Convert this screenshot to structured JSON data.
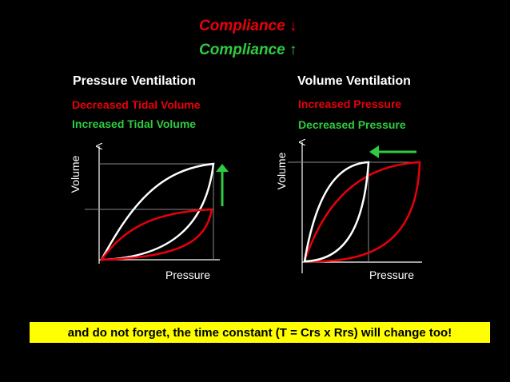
{
  "colors": {
    "red": "#e8000b",
    "green": "#2ecc40",
    "white": "#ffffff",
    "yellow": "#ffff00"
  },
  "header": {
    "line1": "Compliance",
    "line1_arrow": "↓",
    "line2": "Compliance",
    "line2_arrow": "↑"
  },
  "left": {
    "heading": "Pressure Ventilation",
    "red_note": "Decreased Tidal Volume",
    "green_note": "Increased Tidal Volume",
    "y_axis": "Volume",
    "x_axis": "Pressure",
    "arrow_icon": "up-arrow-icon"
  },
  "right": {
    "heading": "Volume Ventilation",
    "red_note": "Increased Pressure",
    "green_note": "Decreased Pressure",
    "y_axis": "Volume",
    "x_axis": "Pressure",
    "arrow_icon": "left-arrow-icon"
  },
  "footer": {
    "note": "and do not forget, the time constant (T = Crs x Rrs) will change too!"
  }
}
